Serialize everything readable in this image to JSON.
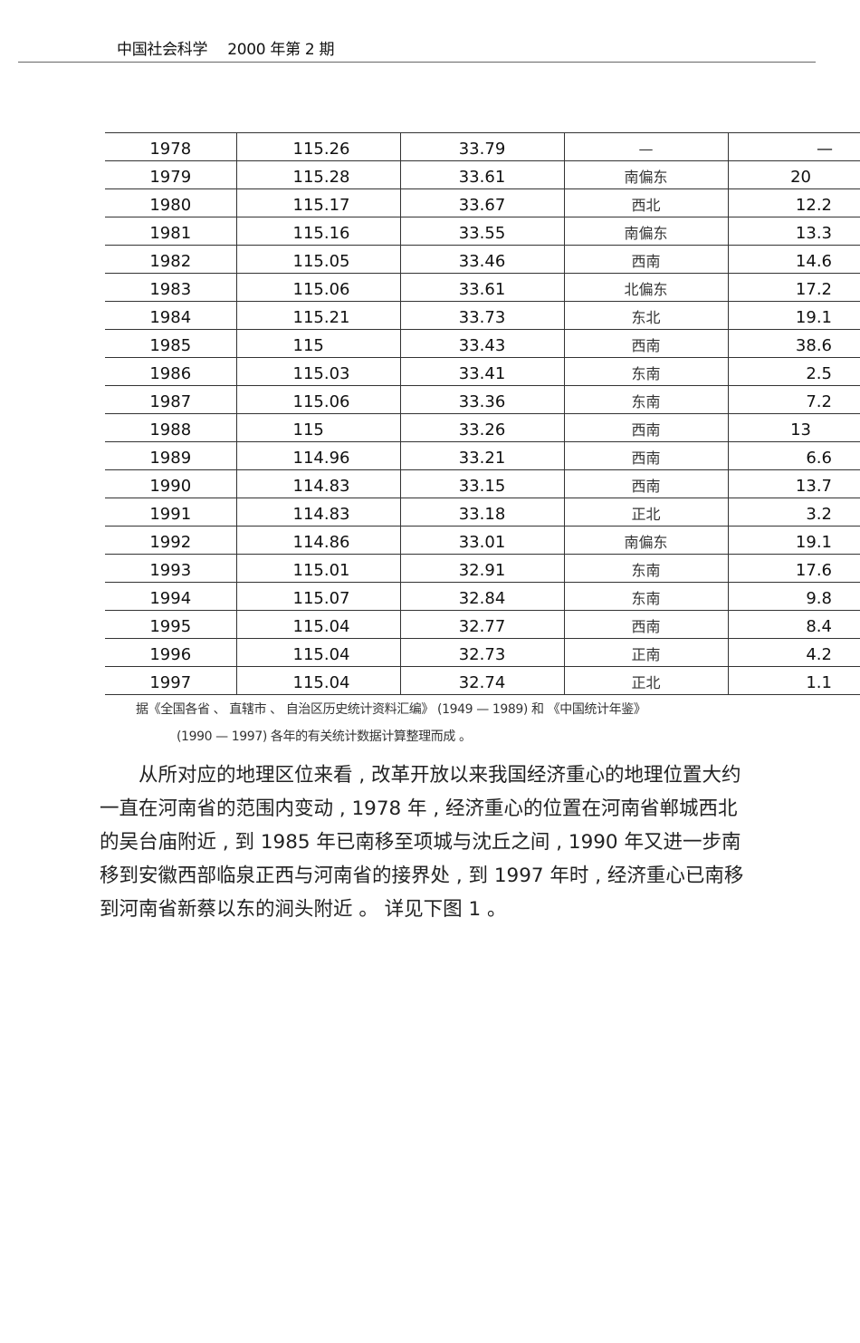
{
  "header": {
    "journal": "中国社会科学",
    "issue": "2000 年第 2 期"
  },
  "table": {
    "rows": [
      [
        "1978",
        "115.26",
        "33.79",
        "—",
        "—"
      ],
      [
        "1979",
        "115.28",
        "33.61",
        "南偏东",
        "20"
      ],
      [
        "1980",
        "115.17",
        "33.67",
        "西北",
        "12.2"
      ],
      [
        "1981",
        "115.16",
        "33.55",
        "南偏东",
        "13.3"
      ],
      [
        "1982",
        "115.05",
        "33.46",
        "西南",
        "14.6"
      ],
      [
        "1983",
        "115.06",
        "33.61",
        "北偏东",
        "17.2"
      ],
      [
        "1984",
        "115.21",
        "33.73",
        "东北",
        "19.1"
      ],
      [
        "1985",
        "115",
        "33.43",
        "西南",
        "38.6"
      ],
      [
        "1986",
        "115.03",
        "33.41",
        "东南",
        "2.5"
      ],
      [
        "1987",
        "115.06",
        "33.36",
        "东南",
        "7.2"
      ],
      [
        "1988",
        "115",
        "33.26",
        "西南",
        "13"
      ],
      [
        "1989",
        "114.96",
        "33.21",
        "西南",
        "6.6"
      ],
      [
        "1990",
        "114.83",
        "33.15",
        "西南",
        "13.7"
      ],
      [
        "1991",
        "114.83",
        "33.18",
        "正北",
        "3.2"
      ],
      [
        "1992",
        "114.86",
        "33.01",
        "南偏东",
        "19.1"
      ],
      [
        "1993",
        "115.01",
        "32.91",
        "东南",
        "17.6"
      ],
      [
        "1994",
        "115.07",
        "32.84",
        "东南",
        "9.8"
      ],
      [
        "1995",
        "115.04",
        "32.77",
        "西南",
        "8.4"
      ],
      [
        "1996",
        "115.04",
        "32.73",
        "正南",
        "4.2"
      ],
      [
        "1997",
        "115.04",
        "32.74",
        "正北",
        "1.1"
      ]
    ]
  },
  "source_note": {
    "line1": "据《全国各省 、 直辖市 、 自治区历史统计资料汇编》 (1949 — 1989) 和 《中国统计年鉴》",
    "line2": "(1990 — 1997) 各年的有关统计数据计算整理而成 。"
  },
  "body": {
    "paragraph": "从所对应的地理区位来看 , 改革开放以来我国经济重心的地理位置大约一直在河南省的范围内变动 , 1978 年 , 经济重心的位置在河南省郸城西北的吴台庙附近 , 到  1985 年已南移至项城与沈丘之间 , 1990 年又进一步南移到安徽西部临泉正西与河南省的接界处 , 到  1997 年时 , 经济重心已南移到河南省新蔡以东的涧头附近 。 详见下图  1 。"
  }
}
